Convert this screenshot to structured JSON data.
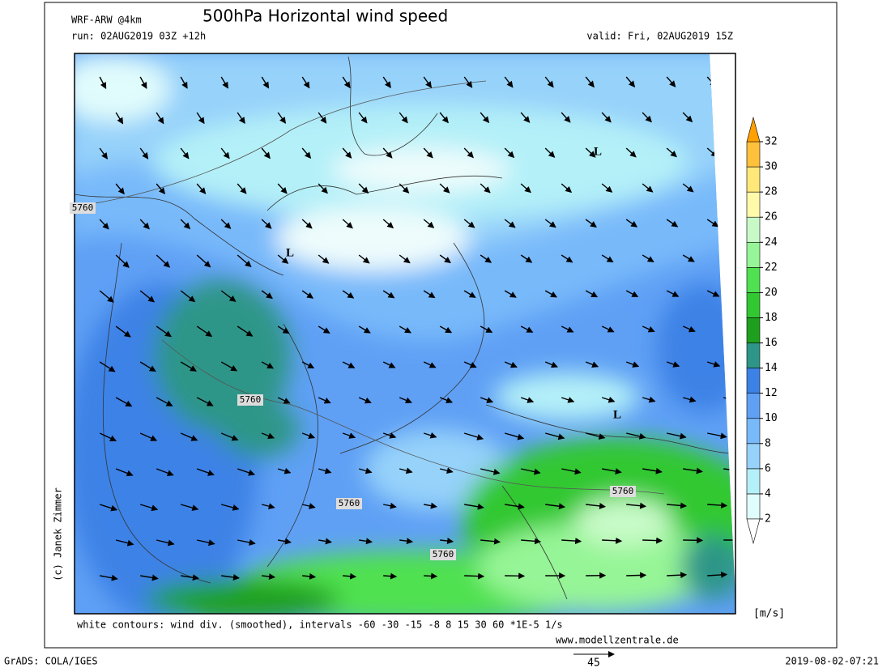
{
  "header": {
    "model": "WRF-ARW @4km",
    "title": "500hPa Horizontal wind speed",
    "run": "run: 02AUG2019 03Z +12h",
    "valid": "valid: Fri, 02AUG2019 15Z"
  },
  "map": {
    "contour_labels": [
      5760,
      5760,
      5760,
      5760,
      5760
    ],
    "lows": [
      "L",
      "L",
      "L"
    ]
  },
  "colorbar": {
    "ticks": [
      2,
      4,
      6,
      8,
      10,
      12,
      14,
      16,
      18,
      20,
      22,
      24,
      26,
      28,
      30,
      32
    ],
    "colors": [
      "#e1fcfc",
      "#b4f0f8",
      "#96d2fa",
      "#78b9fa",
      "#5fa0f5",
      "#3c82e6",
      "#2d9688",
      "#1ea01e",
      "#32c832",
      "#50e150",
      "#96f596",
      "#c8fac8",
      "#fffaaa",
      "#ffe878",
      "#ffc03c"
    ],
    "under_color": "#ffffff",
    "over_color": "#ffa000",
    "unit": "[m/s]"
  },
  "footer": {
    "note": "white contours: wind div. (smoothed), intervals -60 -30 -15 -8 8 15 30 60 *1E-5 1/s",
    "website": "www.modellzentrale.de",
    "credit": "(c) Janek Zimmer",
    "software": "GrADS: COLA/IGES",
    "timestamp": "2019-08-02-07:21",
    "reference_vector": 45
  }
}
